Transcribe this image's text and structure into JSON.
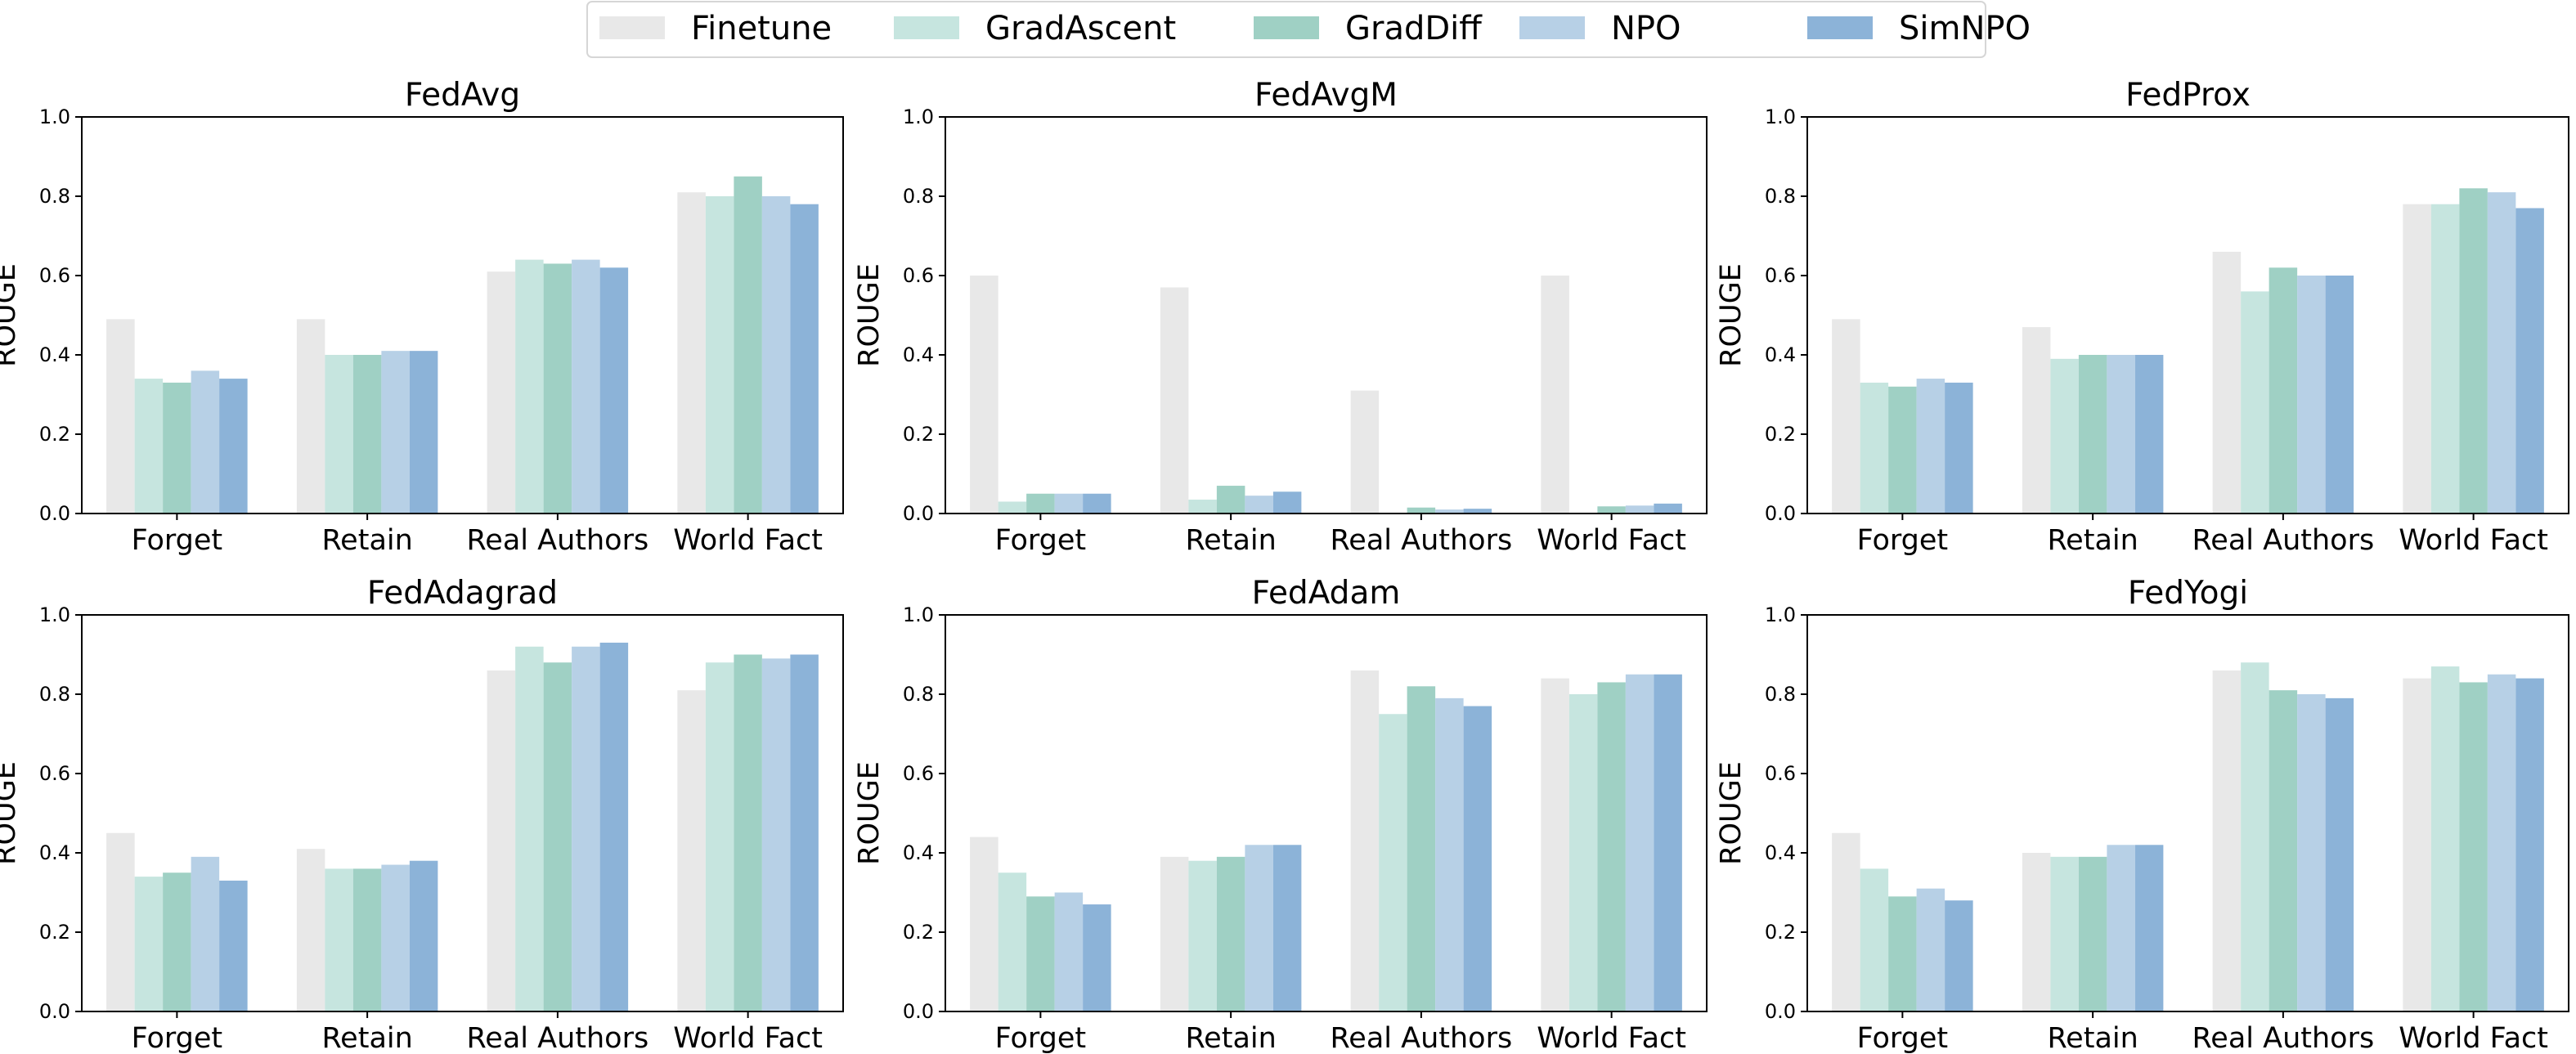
{
  "legend": {
    "placement": "top-center",
    "items": [
      {
        "name": "Finetune",
        "color": "#e8e8e8"
      },
      {
        "name": "GradAscent",
        "color": "#c6e5df"
      },
      {
        "name": "GradDiff",
        "color": "#9fd0c4"
      },
      {
        "name": "NPO",
        "color": "#b7d0e6"
      },
      {
        "name": "SimNPO",
        "color": "#8cb3d8"
      }
    ]
  },
  "chart_data": [
    {
      "type": "bar",
      "title": "FedAvg",
      "ylabel": "ROUGE",
      "ylim": [
        0,
        1.0
      ],
      "yticks": [
        "0.0",
        "0.2",
        "0.4",
        "0.6",
        "0.8",
        "1.0"
      ],
      "categories": [
        "Forget",
        "Retain",
        "Real Authors",
        "World Fact"
      ],
      "series": [
        {
          "name": "Finetune",
          "values": [
            0.49,
            0.49,
            0.61,
            0.81
          ]
        },
        {
          "name": "GradAscent",
          "values": [
            0.34,
            0.4,
            0.64,
            0.8
          ]
        },
        {
          "name": "GradDiff",
          "values": [
            0.33,
            0.4,
            0.63,
            0.85
          ]
        },
        {
          "name": "NPO",
          "values": [
            0.36,
            0.41,
            0.64,
            0.8
          ]
        },
        {
          "name": "SimNPO",
          "values": [
            0.34,
            0.41,
            0.62,
            0.78
          ]
        }
      ]
    },
    {
      "type": "bar",
      "title": "FedAvgM",
      "ylabel": "ROUGE",
      "ylim": [
        0,
        1.0
      ],
      "yticks": [
        "0.0",
        "0.2",
        "0.4",
        "0.6",
        "0.8",
        "1.0"
      ],
      "categories": [
        "Forget",
        "Retain",
        "Real Authors",
        "World Fact"
      ],
      "series": [
        {
          "name": "Finetune",
          "values": [
            0.6,
            0.57,
            0.31,
            0.6
          ]
        },
        {
          "name": "GradAscent",
          "values": [
            0.03,
            0.035,
            0.0,
            0.0
          ]
        },
        {
          "name": "GradDiff",
          "values": [
            0.05,
            0.07,
            0.015,
            0.018
          ]
        },
        {
          "name": "NPO",
          "values": [
            0.05,
            0.045,
            0.01,
            0.02
          ]
        },
        {
          "name": "SimNPO",
          "values": [
            0.05,
            0.055,
            0.012,
            0.025
          ]
        }
      ]
    },
    {
      "type": "bar",
      "title": "FedProx",
      "ylabel": "ROUGE",
      "ylim": [
        0,
        1.0
      ],
      "yticks": [
        "0.0",
        "0.2",
        "0.4",
        "0.6",
        "0.8",
        "1.0"
      ],
      "categories": [
        "Forget",
        "Retain",
        "Real Authors",
        "World Fact"
      ],
      "series": [
        {
          "name": "Finetune",
          "values": [
            0.49,
            0.47,
            0.66,
            0.78
          ]
        },
        {
          "name": "GradAscent",
          "values": [
            0.33,
            0.39,
            0.56,
            0.78
          ]
        },
        {
          "name": "GradDiff",
          "values": [
            0.32,
            0.4,
            0.62,
            0.82
          ]
        },
        {
          "name": "NPO",
          "values": [
            0.34,
            0.4,
            0.6,
            0.81
          ]
        },
        {
          "name": "SimNPO",
          "values": [
            0.33,
            0.4,
            0.6,
            0.77
          ]
        }
      ]
    },
    {
      "type": "bar",
      "title": "FedAdagrad",
      "ylabel": "ROUGE",
      "ylim": [
        0,
        1.0
      ],
      "yticks": [
        "0.0",
        "0.2",
        "0.4",
        "0.6",
        "0.8",
        "1.0"
      ],
      "categories": [
        "Forget",
        "Retain",
        "Real Authors",
        "World Fact"
      ],
      "series": [
        {
          "name": "Finetune",
          "values": [
            0.45,
            0.41,
            0.86,
            0.81
          ]
        },
        {
          "name": "GradAscent",
          "values": [
            0.34,
            0.36,
            0.92,
            0.88
          ]
        },
        {
          "name": "GradDiff",
          "values": [
            0.35,
            0.36,
            0.88,
            0.9
          ]
        },
        {
          "name": "NPO",
          "values": [
            0.39,
            0.37,
            0.92,
            0.89
          ]
        },
        {
          "name": "SimNPO",
          "values": [
            0.33,
            0.38,
            0.93,
            0.9
          ]
        }
      ]
    },
    {
      "type": "bar",
      "title": "FedAdam",
      "ylabel": "ROUGE",
      "ylim": [
        0,
        1.0
      ],
      "yticks": [
        "0.0",
        "0.2",
        "0.4",
        "0.6",
        "0.8",
        "1.0"
      ],
      "categories": [
        "Forget",
        "Retain",
        "Real Authors",
        "World Fact"
      ],
      "series": [
        {
          "name": "Finetune",
          "values": [
            0.44,
            0.39,
            0.86,
            0.84
          ]
        },
        {
          "name": "GradAscent",
          "values": [
            0.35,
            0.38,
            0.75,
            0.8
          ]
        },
        {
          "name": "GradDiff",
          "values": [
            0.29,
            0.39,
            0.82,
            0.83
          ]
        },
        {
          "name": "NPO",
          "values": [
            0.3,
            0.42,
            0.79,
            0.85
          ]
        },
        {
          "name": "SimNPO",
          "values": [
            0.27,
            0.42,
            0.77,
            0.85
          ]
        }
      ]
    },
    {
      "type": "bar",
      "title": "FedYogi",
      "ylabel": "ROUGE",
      "ylim": [
        0,
        1.0
      ],
      "yticks": [
        "0.0",
        "0.2",
        "0.4",
        "0.6",
        "0.8",
        "1.0"
      ],
      "categories": [
        "Forget",
        "Retain",
        "Real Authors",
        "World Fact"
      ],
      "series": [
        {
          "name": "Finetune",
          "values": [
            0.45,
            0.4,
            0.86,
            0.84
          ]
        },
        {
          "name": "GradAscent",
          "values": [
            0.36,
            0.39,
            0.88,
            0.87
          ]
        },
        {
          "name": "GradDiff",
          "values": [
            0.29,
            0.39,
            0.81,
            0.83
          ]
        },
        {
          "name": "NPO",
          "values": [
            0.31,
            0.42,
            0.8,
            0.85
          ]
        },
        {
          "name": "SimNPO",
          "values": [
            0.28,
            0.42,
            0.79,
            0.84
          ]
        }
      ]
    }
  ]
}
